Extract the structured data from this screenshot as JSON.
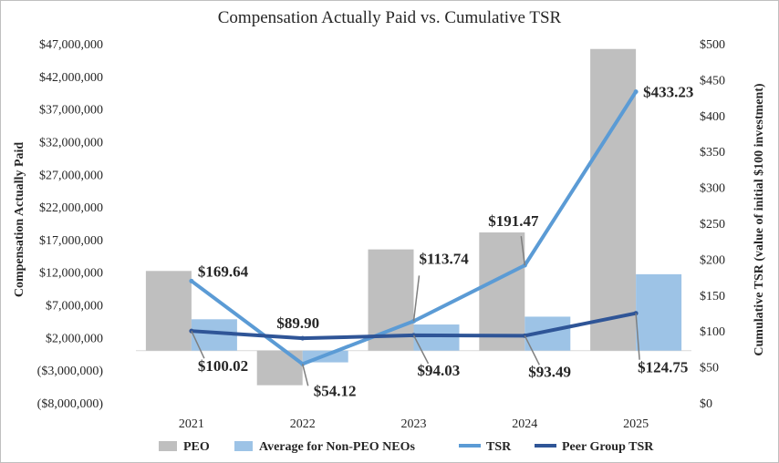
{
  "chart_data": {
    "type": "bar",
    "title": "Compensation Actually Paid vs. Cumulative TSR",
    "categories": [
      "2021",
      "2022",
      "2023",
      "2024",
      "2025"
    ],
    "ylabel": "Compensation Actually Paid",
    "y2label": "Cumulative TSR (value of initial $100 investment)",
    "ylim": [
      -8000000,
      47000000
    ],
    "y2lim": [
      0,
      500
    ],
    "y_ticks": [
      47000000,
      42000000,
      37000000,
      32000000,
      27000000,
      22000000,
      17000000,
      12000000,
      7000000,
      2000000,
      -3000000,
      -8000000
    ],
    "y_tick_labels": [
      "$47,000,000",
      "$42,000,000",
      "$37,000,000",
      "$32,000,000",
      "$27,000,000",
      "$22,000,000",
      "$17,000,000",
      "$12,000,000",
      "$7,000,000",
      "$2,000,000",
      "($3,000,000)",
      "($8,000,000)"
    ],
    "y2_ticks": [
      500,
      450,
      400,
      350,
      300,
      250,
      200,
      150,
      100,
      50,
      0
    ],
    "y2_tick_labels": [
      "$500",
      "$450",
      "$400",
      "$350",
      "$300",
      "$250",
      "$200",
      "$150",
      "$100",
      "$50",
      "$0"
    ],
    "grid": false,
    "legend_position": "bottom",
    "colors": {
      "peo": "#bfbfbf",
      "neo": "#9dc3e6",
      "tsr": "#5b9bd5",
      "peer": "#2f5597",
      "leader": "#7f7f7f",
      "text": "#262626",
      "axis": "#d9d9d9"
    },
    "series": [
      {
        "name": "PEO",
        "kind": "bar",
        "axis": "left",
        "values": [
          12200000,
          -5300000,
          15500000,
          18100000,
          46200000
        ]
      },
      {
        "name": "Average for Non-PEO NEOs",
        "kind": "bar",
        "axis": "left",
        "values": [
          4800000,
          -1800000,
          4000000,
          5200000,
          11700000
        ]
      },
      {
        "name": "TSR",
        "kind": "line",
        "axis": "right",
        "values": [
          169.64,
          54.12,
          113.74,
          191.47,
          433.23
        ],
        "labels": [
          "$169.64",
          "$54.12",
          "$113.74",
          "$191.47",
          "$433.23"
        ]
      },
      {
        "name": "Peer Group TSR",
        "kind": "line",
        "axis": "right",
        "values": [
          100.02,
          89.9,
          94.03,
          93.49,
          124.75
        ],
        "labels": [
          "$100.02",
          "$89.90",
          "$94.03",
          "$93.49",
          "$124.75"
        ]
      }
    ]
  }
}
